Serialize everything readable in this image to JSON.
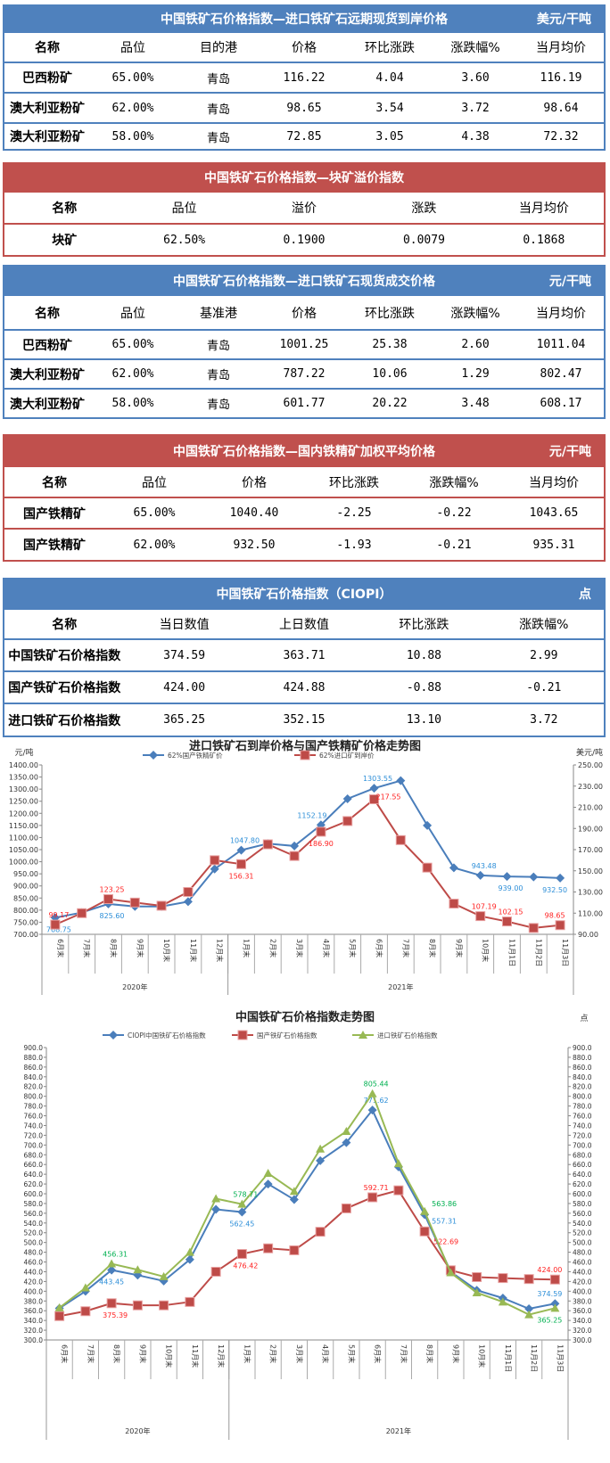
{
  "tables": [
    {
      "color": "blue",
      "title": "中国铁矿石价格指数—进口铁矿石远期现货到岸价格",
      "unit": "美元/干吨",
      "columns": [
        "名称",
        "品位",
        "目的港",
        "价格",
        "环比涨跌",
        "涨跌幅%",
        "当月均价"
      ],
      "rows": [
        [
          "巴西粉矿",
          "65.00%",
          "青岛",
          "116.22",
          "4.04",
          "3.60",
          "116.19"
        ],
        [
          "澳大利亚粉矿",
          "62.00%",
          "青岛",
          "98.65",
          "3.54",
          "3.72",
          "98.64"
        ],
        [
          "澳大利亚粉矿",
          "58.00%",
          "青岛",
          "72.85",
          "3.05",
          "4.38",
          "72.32"
        ]
      ]
    },
    {
      "color": "red",
      "title": "中国铁矿石价格指数—块矿溢价指数",
      "unit": "",
      "columns": [
        "名称",
        "品位",
        "溢价",
        "涨跌",
        "当月均价"
      ],
      "rows": [
        [
          "块矿",
          "62.50%",
          "0.1900",
          "0.0079",
          "0.1868"
        ]
      ]
    },
    {
      "color": "blue",
      "title": "中国铁矿石价格指数—进口铁矿石现货成交价格",
      "unit": "元/干吨",
      "columns": [
        "名称",
        "品位",
        "基准港",
        "价格",
        "环比涨跌",
        "涨跌幅%",
        "当月均价"
      ],
      "rows": [
        [
          "巴西粉矿",
          "65.00%",
          "青岛",
          "1001.25",
          "25.38",
          "2.60",
          "1011.04"
        ],
        [
          "澳大利亚粉矿",
          "62.00%",
          "青岛",
          "787.22",
          "10.06",
          "1.29",
          "802.47"
        ],
        [
          "澳大利亚粉矿",
          "58.00%",
          "青岛",
          "601.77",
          "20.22",
          "3.48",
          "608.17"
        ]
      ]
    },
    {
      "color": "red",
      "title": "中国铁矿石价格指数—国内铁精矿加权平均价格",
      "unit": "元/干吨",
      "columns": [
        "名称",
        "品位",
        "价格",
        "环比涨跌",
        "涨跌幅%",
        "当月均价"
      ],
      "rows": [
        [
          "国产铁精矿",
          "65.00%",
          "1040.40",
          "-2.25",
          "-0.22",
          "1043.65"
        ],
        [
          "国产铁精矿",
          "62.00%",
          "932.50",
          "-1.93",
          "-0.21",
          "935.31"
        ]
      ]
    },
    {
      "color": "blue",
      "title": "中国铁矿石价格指数（CIOPI）",
      "unit": "点",
      "columns": [
        "名称",
        "当日数值",
        "上日数值",
        "环比涨跌",
        "涨跌幅%"
      ],
      "rows": [
        [
          "中国铁矿石价格指数",
          "374.59",
          "363.71",
          "10.88",
          "2.99"
        ],
        [
          "国产铁矿石价格指数",
          "424.00",
          "424.88",
          "-0.88",
          "-0.21"
        ],
        [
          "进口铁矿石价格指数",
          "365.25",
          "352.15",
          "13.10",
          "3.72"
        ]
      ]
    }
  ],
  "chart_data": [
    {
      "type": "line",
      "title": "进口铁矿石到岸价格与国产铁精矿价格走势图",
      "ylabel": "元/吨",
      "y2label": "美元/吨",
      "ylim": [
        700,
        1400
      ],
      "ystep": 50,
      "y2lim": [
        90,
        250
      ],
      "y2step": 20,
      "categories": [
        "6月末",
        "7月末",
        "8月末",
        "9月末",
        "10月末",
        "11月末",
        "12月末",
        "1月末",
        "2月末",
        "3月末",
        "4月末",
        "5月末",
        "6月末",
        "7月末",
        "8月末",
        "9月末",
        "10月末",
        "11月1日",
        "11月2日",
        "11月3日"
      ],
      "groups": [
        {
          "label": "2020年",
          "count": 7
        },
        {
          "label": "2021年",
          "count": 13
        }
      ],
      "legend": "top",
      "grid": false,
      "series": [
        {
          "name": "62%国产铁精矿价",
          "axis": "left",
          "color": "#4a7ebb",
          "marker": "diamond",
          "labelColor": "#2e8fd8",
          "values": [
            768.75,
            790,
            825.6,
            815,
            815,
            835,
            970,
            1047.8,
            1075,
            1065,
            1152.19,
            1260,
            1303.55,
            1335,
            1150,
            975,
            943.48,
            939.0,
            937,
            932.5
          ],
          "labels": {
            "0": "768.75",
            "2": "825.60",
            "7": "1047.80",
            "10": "1152.19",
            "12": "1303.55",
            "16": "943.48",
            "17": "939.00",
            "19": "932.50"
          }
        },
        {
          "name": "62%进口矿到岸价",
          "axis": "right",
          "color": "#be4b48",
          "marker": "square",
          "labelColor": "#ff2020",
          "values": [
            99.17,
            110,
            123.25,
            120,
            117,
            130,
            160,
            156.31,
            175,
            164,
            186.9,
            197,
            217.55,
            179,
            153,
            119,
            107.19,
            102.15,
            96,
            98.65
          ],
          "labels": {
            "0": "99.17",
            "2": "123.25",
            "7": "156.31",
            "10": "186.90",
            "12": "217.55",
            "16": "107.19",
            "17": "102.15",
            "19": "98.65"
          }
        }
      ]
    },
    {
      "type": "line",
      "title": "中国铁矿石价格指数走势图",
      "ylabel": "",
      "y2label": "点",
      "ylim": [
        300,
        900
      ],
      "ystep": 20,
      "y2lim": [
        300,
        900
      ],
      "y2step": 20,
      "categories": [
        "6月末",
        "7月末",
        "8月末",
        "9月末",
        "10月末",
        "11月末",
        "12月末",
        "1月末",
        "2月末",
        "3月末",
        "4月末",
        "5月末",
        "6月末",
        "7月末",
        "8月末",
        "9月末",
        "10月末",
        "11月1日",
        "11月2日",
        "11月3日"
      ],
      "groups": [
        {
          "label": "2020年",
          "count": 7
        },
        {
          "label": "2021年",
          "count": 13
        }
      ],
      "legend": "top",
      "grid": false,
      "series": [
        {
          "name": "CIOPI中国铁矿石价格指数",
          "axis": "left",
          "color": "#4a7ebb",
          "marker": "diamond",
          "labelColor": "#2e8fd8",
          "values": [
            365,
            400,
            443.45,
            433,
            421,
            465,
            568,
            562.45,
            620,
            588,
            668,
            705,
            771.62,
            655,
            557.31,
            440,
            402,
            386,
            364,
            374.59
          ],
          "labels": {
            "2": "443.45",
            "7": "562.45",
            "12": "771.62",
            "14": "557.31",
            "19": "374.59"
          }
        },
        {
          "name": "国产铁矿石价格指数",
          "axis": "left",
          "color": "#be4b48",
          "marker": "square",
          "labelColor": "#ff2020",
          "values": [
            349,
            359,
            375.39,
            371,
            371,
            378,
            440,
            476.42,
            488,
            484,
            522,
            570,
            592.71,
            607,
            522.69,
            443,
            429,
            427,
            425,
            424.0
          ],
          "labels": {
            "2": "375.39",
            "7": "476.42",
            "12": "592.71",
            "14": "522.69",
            "19": "424.00"
          }
        },
        {
          "name": "进口铁矿石价格指数",
          "axis": "left",
          "color": "#98b954",
          "marker": "triangle",
          "labelColor": "#00b050",
          "values": [
            366,
            407,
            456.31,
            444,
            430,
            480,
            590,
            578.71,
            642,
            605,
            692,
            728,
            805.44,
            662,
            563.86,
            438,
            397,
            378,
            352,
            365.25
          ],
          "labels": {
            "2": "456.31",
            "7": "578.71",
            "12": "805.44",
            "14": "563.86",
            "19": "365.25"
          }
        }
      ]
    }
  ]
}
